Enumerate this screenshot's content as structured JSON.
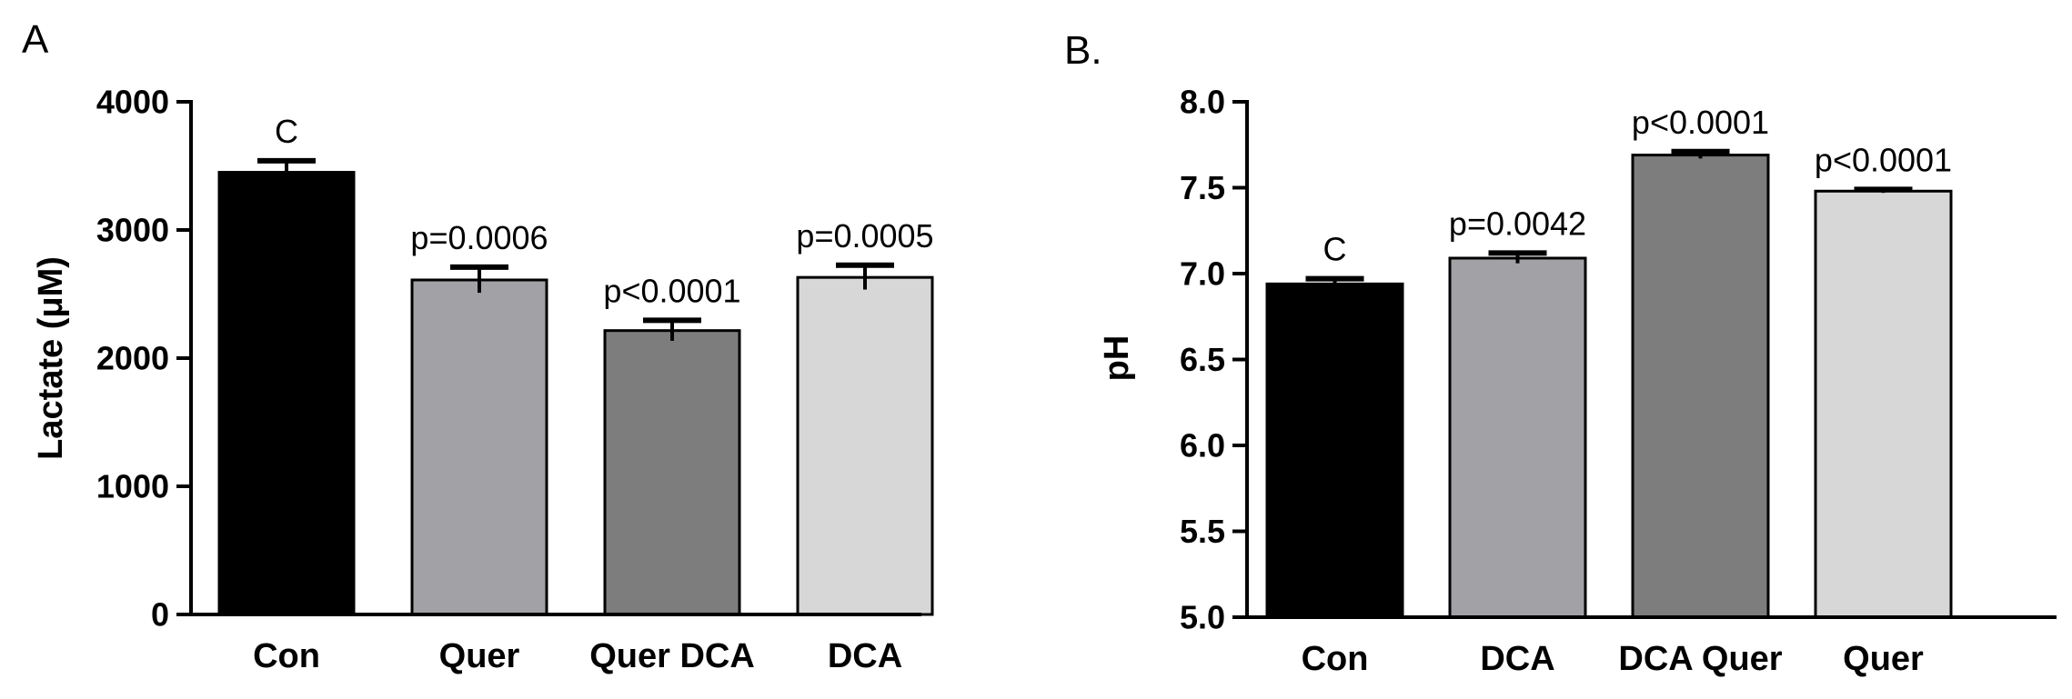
{
  "chart_data": [
    {
      "panel": "A",
      "panel_label": "A",
      "type": "bar",
      "title": "",
      "xlabel": "",
      "ylabel": "Lactate (μM)",
      "ylim": [
        0,
        4000
      ],
      "yticks": [
        0,
        1000,
        2000,
        3000,
        4000
      ],
      "ytick_labels": [
        "0",
        "1000",
        "2000",
        "3000",
        "4000"
      ],
      "grid": false,
      "categories": [
        "Con",
        "Quer",
        "Quer DCA",
        "DCA"
      ],
      "values": [
        3450,
        2610,
        2215,
        2630
      ],
      "errors": [
        90,
        100,
        80,
        95
      ],
      "annotations": [
        "C",
        "p=0.0006",
        "p<0.0001",
        "p=0.0005"
      ],
      "colors": [
        "#000000",
        "#a2a2a6",
        "#7d7d7d",
        "#d7d7d7"
      ]
    },
    {
      "panel": "B",
      "panel_label": "B.",
      "type": "bar",
      "title": "",
      "xlabel": "",
      "ylabel": "pH",
      "ylim": [
        5.0,
        8.0
      ],
      "yticks": [
        5.0,
        5.5,
        6.0,
        6.5,
        7.0,
        7.5,
        8.0
      ],
      "ytick_labels": [
        "5.0",
        "5.5",
        "6.0",
        "6.5",
        "7.0",
        "7.5",
        "8.0"
      ],
      "grid": false,
      "categories": [
        "Con",
        "DCA",
        "DCA Quer",
        "Quer"
      ],
      "values": [
        6.94,
        7.09,
        7.69,
        7.48
      ],
      "errors": [
        0.03,
        0.03,
        0.02,
        0.01
      ],
      "annotations": [
        "C",
        "p=0.0042",
        "p<0.0001",
        "p<0.0001"
      ],
      "colors": [
        "#000000",
        "#a2a2a6",
        "#7d7d7d",
        "#d7d7d7"
      ]
    }
  ]
}
